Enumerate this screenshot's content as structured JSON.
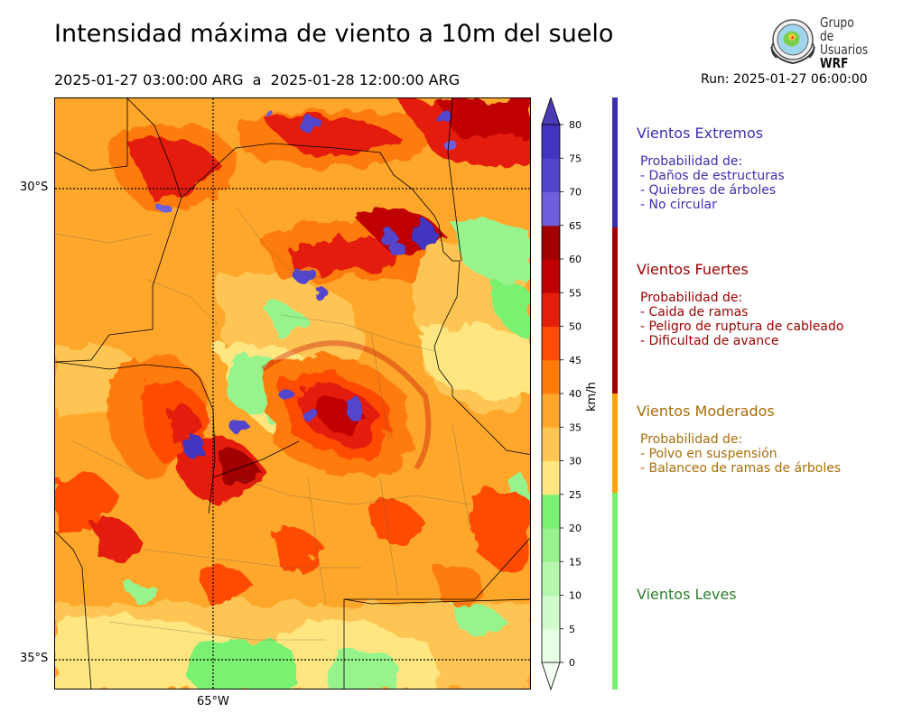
{
  "header": {
    "title": "Intensidad máxima de viento a 10m del suelo",
    "period_start": "2025-01-27 03:00:00 ARG",
    "period_sep": "a",
    "period_end": "2025-01-28 12:00:00 ARG",
    "run": "Run: 2025-01-27 06:00:00"
  },
  "logo": {
    "line1": "Grupo de",
    "line2": "Usuarios",
    "line3": "WRF",
    "icon": "globe-emblem-icon"
  },
  "map": {
    "lat_labels": [
      "30°S",
      "35°S"
    ],
    "lon_labels": [
      "65°W"
    ],
    "gridline_style": "dotted"
  },
  "colorbar": {
    "unit": "km/h",
    "ticks": [
      "0",
      "5",
      "10",
      "15",
      "20",
      "25",
      "30",
      "35",
      "40",
      "45",
      "50",
      "55",
      "60",
      "65",
      "70",
      "75",
      "80"
    ],
    "colors": [
      "#e8fde6",
      "#d2fbcd",
      "#b6f7ae",
      "#97f38c",
      "#7af170",
      "#ffe680",
      "#fec554",
      "#fea72a",
      "#fe7b0c",
      "#fe4b06",
      "#e31e0a",
      "#c00000",
      "#a00000",
      "#6e60dc",
      "#5245cc",
      "#4334c0"
    ],
    "extend_top": "#4a3bb5",
    "extend_bottom": "#f5fff2"
  },
  "categories": [
    {
      "title": "Vientos Extremos",
      "color": "#3b2fb0",
      "bar_color": "#3b2fb0",
      "lines": [
        "Probabilidad de:",
        "- Daños de estructuras",
        "- Quiebres de árboles",
        "- No circular"
      ]
    },
    {
      "title": "Vientos Fuertes",
      "color": "#9c0000",
      "bar_color": "#a00000",
      "lines": [
        "Probabilidad de:",
        "- Caida de ramas",
        "- Peligro de ruptura de cableado",
        "- Dificultad de avance"
      ]
    },
    {
      "title": "Vientos Moderados",
      "color": "#a86e0a",
      "bar_color": "#fea20a",
      "lines": [
        "Probabilidad de:",
        "- Polvo en suspensión",
        "- Balanceo de ramas de árboles"
      ]
    },
    {
      "title": "Vientos Leves",
      "color": "#2f7f2f",
      "bar_color": "#7af170",
      "lines": []
    }
  ]
}
